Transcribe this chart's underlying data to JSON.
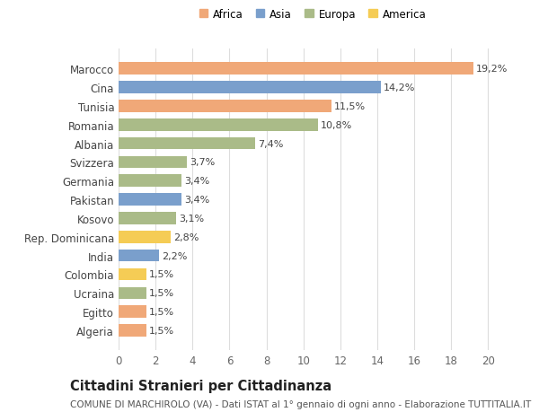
{
  "categories": [
    "Algeria",
    "Egitto",
    "Ucraina",
    "Colombia",
    "India",
    "Rep. Dominicana",
    "Kosovo",
    "Pakistan",
    "Germania",
    "Svizzera",
    "Albania",
    "Romania",
    "Tunisia",
    "Cina",
    "Marocco"
  ],
  "values": [
    1.5,
    1.5,
    1.5,
    1.5,
    2.2,
    2.8,
    3.1,
    3.4,
    3.4,
    3.7,
    7.4,
    10.8,
    11.5,
    14.2,
    19.2
  ],
  "continents": [
    "Africa",
    "Africa",
    "Europa",
    "America",
    "Asia",
    "America",
    "Europa",
    "Asia",
    "Europa",
    "Europa",
    "Europa",
    "Europa",
    "Africa",
    "Asia",
    "Africa"
  ],
  "colors": {
    "Africa": "#F0A878",
    "Asia": "#7A9FCC",
    "Europa": "#AABB88",
    "America": "#F5CC55"
  },
  "legend_order": [
    "Africa",
    "Asia",
    "Europa",
    "America"
  ],
  "legend_colors": [
    "#F0A878",
    "#7A9FCC",
    "#AABB88",
    "#F5CC55"
  ],
  "title": "Cittadini Stranieri per Cittadinanza",
  "subtitle": "COMUNE DI MARCHIROLO (VA) - Dati ISTAT al 1° gennaio di ogni anno - Elaborazione TUTTITALIA.IT",
  "xlim": [
    0,
    21
  ],
  "xticks": [
    0,
    2,
    4,
    6,
    8,
    10,
    12,
    14,
    16,
    18,
    20
  ],
  "bar_height": 0.65,
  "background_color": "#ffffff",
  "grid_color": "#dddddd",
  "label_fontsize": 8,
  "title_fontsize": 10.5,
  "subtitle_fontsize": 7.5,
  "ytick_fontsize": 8.5,
  "xtick_fontsize": 8.5
}
